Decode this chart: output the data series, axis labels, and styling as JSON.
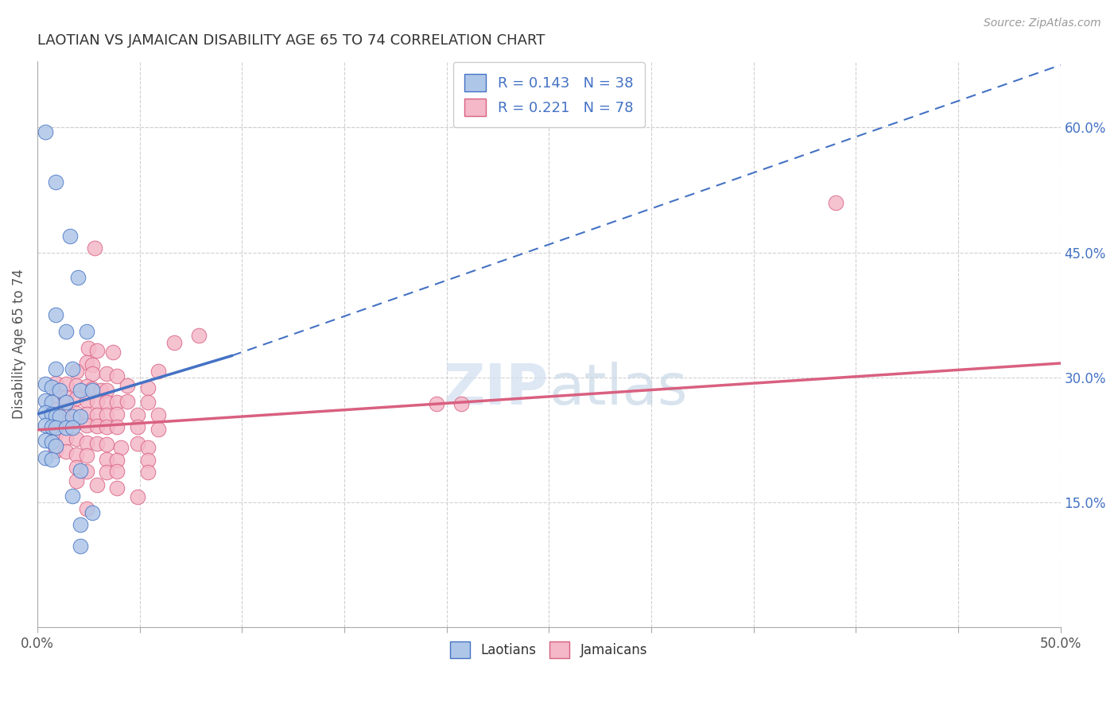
{
  "title": "LAOTIAN VS JAMAICAN DISABILITY AGE 65 TO 74 CORRELATION CHART",
  "source": "Source: ZipAtlas.com",
  "ylabel": "Disability Age 65 to 74",
  "xlim": [
    0.0,
    0.5
  ],
  "ylim": [
    0.0,
    0.68
  ],
  "xtick_positions": [
    0.0,
    0.05,
    0.1,
    0.15,
    0.2,
    0.25,
    0.3,
    0.35,
    0.4,
    0.45,
    0.5
  ],
  "xtick_labels": [
    "0.0%",
    "",
    "",
    "",
    "",
    "",
    "",
    "",
    "",
    "",
    "50.0%"
  ],
  "ytick_right_vals": [
    0.15,
    0.3,
    0.45,
    0.6
  ],
  "ytick_right_labels": [
    "15.0%",
    "30.0%",
    "45.0%",
    "60.0%"
  ],
  "laotian_color": "#aec6e8",
  "jamaican_color": "#f4b8c8",
  "laotian_line_color": "#4472c4",
  "jamaican_line_color": "#d96080",
  "laotian_line_solid": [
    [
      0.0,
      0.256
    ],
    [
      0.095,
      0.326
    ]
  ],
  "laotian_line_dashed": [
    [
      0.095,
      0.326
    ],
    [
      0.5,
      0.675
    ]
  ],
  "jamaican_line": [
    [
      0.0,
      0.237
    ],
    [
      0.5,
      0.317
    ]
  ],
  "laotian_scatter": [
    [
      0.004,
      0.595
    ],
    [
      0.016,
      0.47
    ],
    [
      0.02,
      0.42
    ],
    [
      0.009,
      0.375
    ],
    [
      0.014,
      0.355
    ],
    [
      0.024,
      0.355
    ],
    [
      0.009,
      0.31
    ],
    [
      0.017,
      0.31
    ],
    [
      0.004,
      0.292
    ],
    [
      0.007,
      0.288
    ],
    [
      0.011,
      0.285
    ],
    [
      0.021,
      0.285
    ],
    [
      0.027,
      0.285
    ],
    [
      0.004,
      0.272
    ],
    [
      0.007,
      0.27
    ],
    [
      0.014,
      0.27
    ],
    [
      0.004,
      0.258
    ],
    [
      0.007,
      0.256
    ],
    [
      0.009,
      0.254
    ],
    [
      0.011,
      0.253
    ],
    [
      0.017,
      0.253
    ],
    [
      0.021,
      0.253
    ],
    [
      0.004,
      0.243
    ],
    [
      0.007,
      0.241
    ],
    [
      0.009,
      0.24
    ],
    [
      0.014,
      0.24
    ],
    [
      0.017,
      0.24
    ],
    [
      0.004,
      0.224
    ],
    [
      0.007,
      0.223
    ],
    [
      0.009,
      0.218
    ],
    [
      0.004,
      0.203
    ],
    [
      0.007,
      0.202
    ],
    [
      0.021,
      0.188
    ],
    [
      0.017,
      0.158
    ],
    [
      0.027,
      0.138
    ],
    [
      0.021,
      0.123
    ],
    [
      0.021,
      0.098
    ],
    [
      0.009,
      0.535
    ]
  ],
  "jamaican_scatter": [
    [
      0.39,
      0.51
    ],
    [
      0.028,
      0.455
    ],
    [
      0.025,
      0.335
    ],
    [
      0.029,
      0.332
    ],
    [
      0.037,
      0.33
    ],
    [
      0.024,
      0.318
    ],
    [
      0.027,
      0.315
    ],
    [
      0.019,
      0.307
    ],
    [
      0.027,
      0.305
    ],
    [
      0.034,
      0.305
    ],
    [
      0.039,
      0.302
    ],
    [
      0.059,
      0.307
    ],
    [
      0.009,
      0.293
    ],
    [
      0.014,
      0.292
    ],
    [
      0.019,
      0.29
    ],
    [
      0.024,
      0.289
    ],
    [
      0.027,
      0.286
    ],
    [
      0.031,
      0.285
    ],
    [
      0.034,
      0.285
    ],
    [
      0.044,
      0.29
    ],
    [
      0.054,
      0.287
    ],
    [
      0.009,
      0.278
    ],
    [
      0.014,
      0.276
    ],
    [
      0.019,
      0.275
    ],
    [
      0.024,
      0.272
    ],
    [
      0.029,
      0.271
    ],
    [
      0.034,
      0.27
    ],
    [
      0.039,
      0.27
    ],
    [
      0.044,
      0.271
    ],
    [
      0.054,
      0.27
    ],
    [
      0.009,
      0.262
    ],
    [
      0.014,
      0.261
    ],
    [
      0.019,
      0.257
    ],
    [
      0.024,
      0.256
    ],
    [
      0.029,
      0.255
    ],
    [
      0.034,
      0.255
    ],
    [
      0.039,
      0.256
    ],
    [
      0.049,
      0.255
    ],
    [
      0.059,
      0.255
    ],
    [
      0.009,
      0.248
    ],
    [
      0.014,
      0.246
    ],
    [
      0.019,
      0.246
    ],
    [
      0.024,
      0.243
    ],
    [
      0.029,
      0.242
    ],
    [
      0.034,
      0.241
    ],
    [
      0.039,
      0.241
    ],
    [
      0.049,
      0.241
    ],
    [
      0.059,
      0.238
    ],
    [
      0.009,
      0.232
    ],
    [
      0.014,
      0.227
    ],
    [
      0.019,
      0.226
    ],
    [
      0.024,
      0.222
    ],
    [
      0.029,
      0.221
    ],
    [
      0.034,
      0.22
    ],
    [
      0.041,
      0.216
    ],
    [
      0.049,
      0.221
    ],
    [
      0.054,
      0.216
    ],
    [
      0.009,
      0.212
    ],
    [
      0.014,
      0.211
    ],
    [
      0.019,
      0.207
    ],
    [
      0.024,
      0.206
    ],
    [
      0.034,
      0.202
    ],
    [
      0.039,
      0.201
    ],
    [
      0.054,
      0.201
    ],
    [
      0.019,
      0.192
    ],
    [
      0.024,
      0.187
    ],
    [
      0.034,
      0.186
    ],
    [
      0.039,
      0.187
    ],
    [
      0.054,
      0.186
    ],
    [
      0.019,
      0.176
    ],
    [
      0.029,
      0.171
    ],
    [
      0.039,
      0.167
    ],
    [
      0.049,
      0.157
    ],
    [
      0.024,
      0.142
    ],
    [
      0.079,
      0.35
    ],
    [
      0.067,
      0.342
    ],
    [
      0.195,
      0.268
    ],
    [
      0.207,
      0.268
    ]
  ],
  "background_color": "#ffffff",
  "grid_color": "#d0d0d0"
}
